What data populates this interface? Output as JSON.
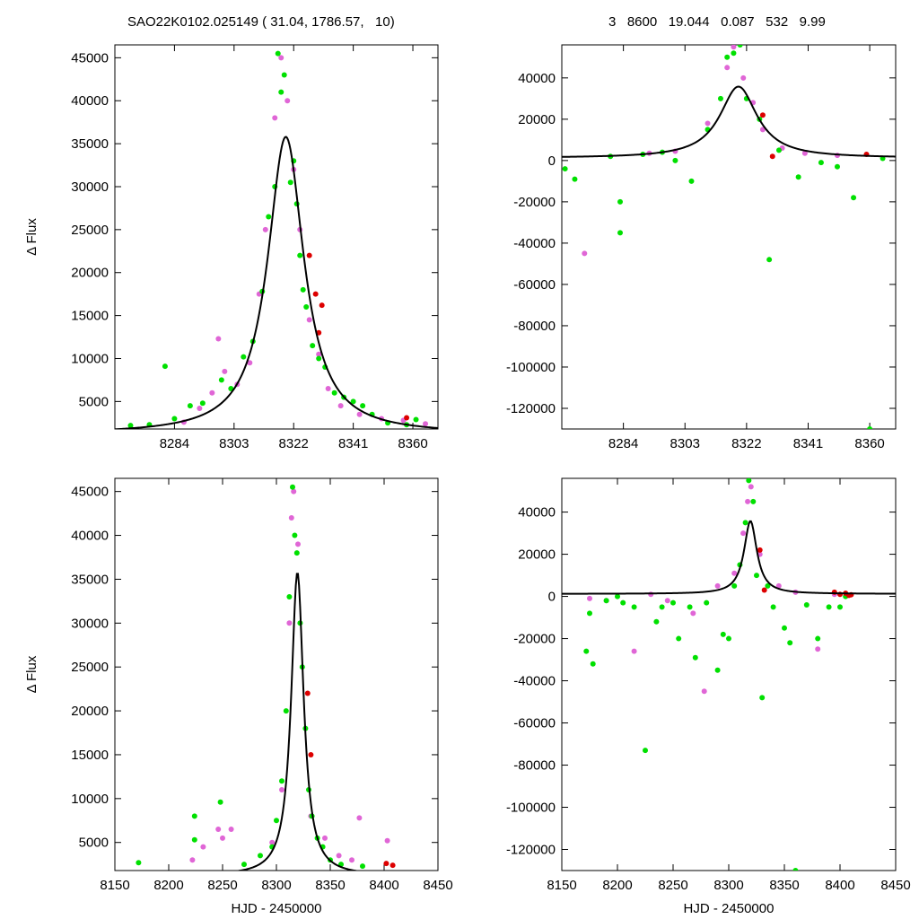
{
  "header": {
    "left": "SAO22K0102.025149 ( 31.04, 1786.57,   10)",
    "right": "3   8600   19.044   0.087   532   9.99"
  },
  "colors": {
    "series_magenta": "#e066d6",
    "series_green": "#00e000",
    "series_red": "#dd0000",
    "series_gray": "#8a8a8a",
    "model": "#000000"
  },
  "chart_data": [
    {
      "type": "scatter",
      "panel": "top-left",
      "ylabel": "Δ Flux",
      "xlabel": "",
      "xlim": [
        8265,
        8368
      ],
      "ylim": [
        1800,
        46500
      ],
      "xticks": [
        8284,
        8303,
        8322,
        8341,
        8360
      ],
      "yticks": [
        5000,
        10000,
        15000,
        20000,
        25000,
        30000,
        35000,
        40000,
        45000
      ],
      "model": {
        "t0": 8319.5,
        "peak": 35800,
        "tau": 7.0,
        "base": 1200
      },
      "series": [
        {
          "color": "magenta",
          "points": [
            [
              8287,
              2600
            ],
            [
              8292,
              4200
            ],
            [
              8296,
              6000
            ],
            [
              8298,
              12300
            ],
            [
              8300,
              8500
            ],
            [
              8304,
              7000
            ],
            [
              8308,
              9500
            ],
            [
              8311,
              17500
            ],
            [
              8313,
              25000
            ],
            [
              8316,
              38000
            ],
            [
              8318,
              45000
            ],
            [
              8320,
              40000
            ],
            [
              8322,
              32000
            ],
            [
              8324,
              25000
            ],
            [
              8327,
              14500
            ],
            [
              8330,
              10500
            ],
            [
              8333,
              6500
            ],
            [
              8337,
              4500
            ],
            [
              8343,
              3500
            ],
            [
              8350,
              3000
            ],
            [
              8357,
              2800
            ],
            [
              8364,
              2400
            ]
          ]
        },
        {
          "color": "green",
          "points": [
            [
              8270,
              2200
            ],
            [
              8276,
              2300
            ],
            [
              8281,
              9100
            ],
            [
              8284,
              3000
            ],
            [
              8289,
              4500
            ],
            [
              8293,
              4800
            ],
            [
              8299,
              7500
            ],
            [
              8302,
              6500
            ],
            [
              8306,
              10200
            ],
            [
              8309,
              12000
            ],
            [
              8312,
              17800
            ],
            [
              8314,
              26500
            ],
            [
              8316,
              30000
            ],
            [
              8317,
              45500
            ],
            [
              8318,
              41000
            ],
            [
              8319,
              43000
            ],
            [
              8321,
              30500
            ],
            [
              8322,
              33000
            ],
            [
              8323,
              28000
            ],
            [
              8324,
              22000
            ],
            [
              8325,
              18000
            ],
            [
              8326,
              16000
            ],
            [
              8328,
              11500
            ],
            [
              8330,
              10000
            ],
            [
              8332,
              9000
            ],
            [
              8335,
              6000
            ],
            [
              8338,
              5500
            ],
            [
              8341,
              5000
            ],
            [
              8344,
              4500
            ],
            [
              8347,
              3500
            ],
            [
              8352,
              2500
            ],
            [
              8358,
              2300
            ],
            [
              8361,
              2900
            ]
          ]
        },
        {
          "color": "red",
          "points": [
            [
              8327,
              22000
            ],
            [
              8329,
              17500
            ],
            [
              8331,
              16200
            ],
            [
              8330,
              13000
            ],
            [
              8358,
              3100
            ]
          ]
        }
      ]
    },
    {
      "type": "scatter",
      "panel": "top-right",
      "ylabel": "",
      "xlabel": "",
      "xlim": [
        8265,
        8368
      ],
      "ylim": [
        -130000,
        56000
      ],
      "xticks": [
        8284,
        8303,
        8322,
        8341,
        8360
      ],
      "yticks": [
        -120000,
        -100000,
        -80000,
        -60000,
        -40000,
        -20000,
        0,
        20000,
        40000
      ],
      "model": {
        "t0": 8319.5,
        "peak": 35800,
        "tau": 7.0,
        "base": 1200
      },
      "series": [
        {
          "color": "magenta",
          "points": [
            [
              8272,
              -45000
            ],
            [
              8292,
              3500
            ],
            [
              8300,
              4500
            ],
            [
              8310,
              18000
            ],
            [
              8316,
              45000
            ],
            [
              8318,
              55000
            ],
            [
              8321,
              40000
            ],
            [
              8324,
              28000
            ],
            [
              8327,
              15000
            ],
            [
              8333,
              6000
            ],
            [
              8340,
              3500
            ],
            [
              8350,
              2500
            ]
          ]
        },
        {
          "color": "green",
          "points": [
            [
              8266,
              -4000
            ],
            [
              8269,
              -9000
            ],
            [
              8280,
              2000
            ],
            [
              8283,
              -20000
            ],
            [
              8283,
              -35000
            ],
            [
              8290,
              3000
            ],
            [
              8296,
              4000
            ],
            [
              8300,
              0
            ],
            [
              8305,
              -10000
            ],
            [
              8310,
              15000
            ],
            [
              8314,
              30000
            ],
            [
              8316,
              50000
            ],
            [
              8318,
              52000
            ],
            [
              8320,
              56000
            ],
            [
              8322,
              30000
            ],
            [
              8326,
              20000
            ],
            [
              8329,
              -48000
            ],
            [
              8332,
              5000
            ],
            [
              8338,
              -8000
            ],
            [
              8345,
              -1000
            ],
            [
              8350,
              -3000
            ],
            [
              8355,
              -18000
            ],
            [
              8360,
              -130000
            ],
            [
              8364,
              1000
            ]
          ]
        },
        {
          "color": "red",
          "points": [
            [
              8327,
              22000
            ],
            [
              8330,
              2000
            ],
            [
              8359,
              3000
            ]
          ]
        }
      ]
    },
    {
      "type": "scatter",
      "panel": "bottom-left",
      "ylabel": "Δ Flux",
      "xlabel": "HJD - 2450000",
      "xlim": [
        8150,
        8450
      ],
      "ylim": [
        1800,
        46500
      ],
      "xticks": [
        8150,
        8200,
        8250,
        8300,
        8350,
        8400,
        8450
      ],
      "yticks": [
        5000,
        10000,
        15000,
        20000,
        25000,
        30000,
        35000,
        40000,
        45000
      ],
      "model": {
        "t0": 8319.5,
        "peak": 35800,
        "tau": 7.0,
        "base": 1200
      },
      "series": [
        {
          "color": "magenta",
          "points": [
            [
              8222,
              3000
            ],
            [
              8232,
              4500
            ],
            [
              8246,
              6500
            ],
            [
              8250,
              5500
            ],
            [
              8258,
              6500
            ],
            [
              8296,
              5000
            ],
            [
              8305,
              11000
            ],
            [
              8312,
              30000
            ],
            [
              8314,
              42000
            ],
            [
              8316,
              45000
            ],
            [
              8320,
              39000
            ],
            [
              8332,
              8000
            ],
            [
              8345,
              5500
            ],
            [
              8358,
              3500
            ],
            [
              8370,
              3000
            ],
            [
              8377,
              7800
            ],
            [
              8403,
              5200
            ]
          ]
        },
        {
          "color": "green",
          "points": [
            [
              8172,
              2700
            ],
            [
              8224,
              8000
            ],
            [
              8224,
              5300
            ],
            [
              8248,
              9600
            ],
            [
              8270,
              2500
            ],
            [
              8285,
              3500
            ],
            [
              8296,
              4500
            ],
            [
              8300,
              7500
            ],
            [
              8305,
              12000
            ],
            [
              8309,
              20000
            ],
            [
              8312,
              33000
            ],
            [
              8315,
              45500
            ],
            [
              8317,
              40000
            ],
            [
              8319,
              38000
            ],
            [
              8322,
              30000
            ],
            [
              8324,
              25000
            ],
            [
              8327,
              18000
            ],
            [
              8330,
              11000
            ],
            [
              8333,
              8000
            ],
            [
              8338,
              5500
            ],
            [
              8343,
              4500
            ],
            [
              8350,
              3000
            ],
            [
              8360,
              2500
            ],
            [
              8380,
              2300
            ]
          ]
        },
        {
          "color": "red",
          "points": [
            [
              8329,
              22000
            ],
            [
              8332,
              15000
            ],
            [
              8402,
              2600
            ],
            [
              8408,
              2400
            ]
          ]
        }
      ]
    },
    {
      "type": "scatter",
      "panel": "bottom-right",
      "ylabel": "",
      "xlabel": "HJD - 2450000",
      "xlim": [
        8150,
        8450
      ],
      "ylim": [
        -130000,
        56000
      ],
      "xticks": [
        8150,
        8200,
        8250,
        8300,
        8350,
        8400,
        8450
      ],
      "yticks": [
        -120000,
        -100000,
        -80000,
        -60000,
        -40000,
        -20000,
        0,
        20000,
        40000
      ],
      "model": {
        "t0": 8319.5,
        "peak": 35800,
        "tau": 7.0,
        "base": 1200
      },
      "series": [
        {
          "color": "magenta",
          "points": [
            [
              8175,
              -1000
            ],
            [
              8190,
              -2000
            ],
            [
              8215,
              -26000
            ],
            [
              8230,
              1000
            ],
            [
              8245,
              -2000
            ],
            [
              8268,
              -8000
            ],
            [
              8278,
              -45000
            ],
            [
              8290,
              5000
            ],
            [
              8305,
              11000
            ],
            [
              8313,
              30000
            ],
            [
              8317,
              45000
            ],
            [
              8320,
              52000
            ],
            [
              8328,
              20000
            ],
            [
              8345,
              5000
            ],
            [
              8360,
              2000
            ],
            [
              8380,
              -25000
            ],
            [
              8395,
              1000
            ]
          ]
        },
        {
          "color": "green",
          "points": [
            [
              8172,
              -26000
            ],
            [
              8175,
              -8000
            ],
            [
              8178,
              -32000
            ],
            [
              8190,
              -2000
            ],
            [
              8200,
              0
            ],
            [
              8205,
              -3000
            ],
            [
              8215,
              -5000
            ],
            [
              8225,
              -73000
            ],
            [
              8235,
              -12000
            ],
            [
              8240,
              -5000
            ],
            [
              8250,
              -3000
            ],
            [
              8255,
              -20000
            ],
            [
              8265,
              -5000
            ],
            [
              8270,
              -29000
            ],
            [
              8280,
              -3000
            ],
            [
              8290,
              -35000
            ],
            [
              8295,
              -18000
            ],
            [
              8300,
              -20000
            ],
            [
              8305,
              5000
            ],
            [
              8310,
              15000
            ],
            [
              8315,
              35000
            ],
            [
              8318,
              55000
            ],
            [
              8322,
              45000
            ],
            [
              8325,
              10000
            ],
            [
              8330,
              -48000
            ],
            [
              8335,
              5000
            ],
            [
              8340,
              -5000
            ],
            [
              8350,
              -15000
            ],
            [
              8355,
              -22000
            ],
            [
              8360,
              -130000
            ],
            [
              8370,
              -4000
            ],
            [
              8380,
              -20000
            ],
            [
              8390,
              -5000
            ],
            [
              8400,
              -5000
            ],
            [
              8405,
              0
            ]
          ]
        },
        {
          "color": "red",
          "points": [
            [
              8328,
              22000
            ],
            [
              8332,
              3000
            ],
            [
              8395,
              2000
            ],
            [
              8400,
              1000
            ],
            [
              8405,
              1500
            ],
            [
              8408,
              500
            ],
            [
              8410,
              800
            ]
          ]
        }
      ]
    }
  ]
}
